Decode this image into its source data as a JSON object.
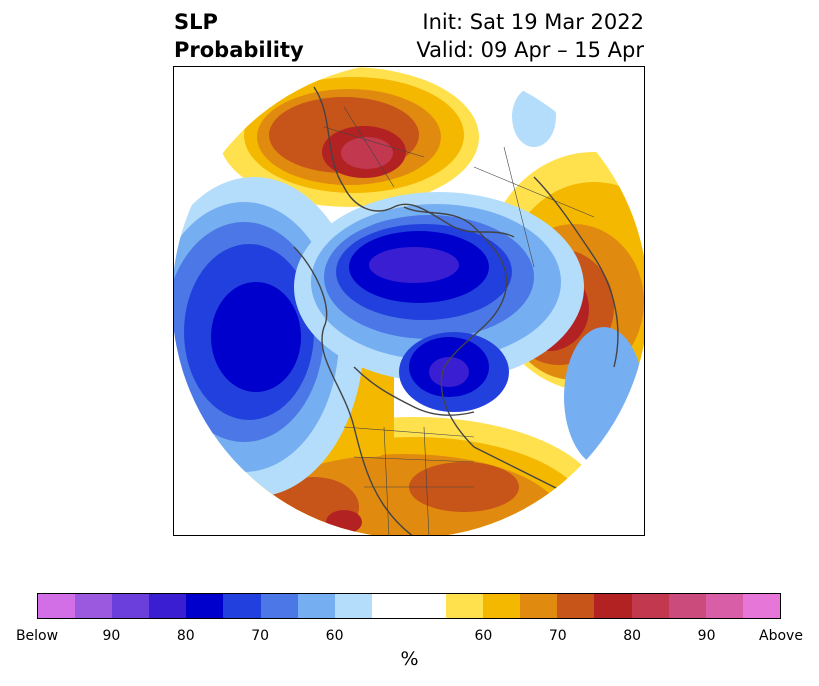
{
  "title": {
    "left_line1": "SLP",
    "left_line2": "Probability",
    "right_line1": "Init: Sat 19 Mar 2022",
    "right_line2": "Valid: 09 Apr – 15 Apr"
  },
  "colorbar": {
    "colors": [
      "#d36fe6",
      "#9b59e0",
      "#6a3fdc",
      "#3a1fd2",
      "#0000cc",
      "#2240dd",
      "#4b78e6",
      "#76aef2",
      "#b4ddfb",
      "#ffffff",
      "#ffffff",
      "#ffe14d",
      "#f5b800",
      "#e08a10",
      "#c75418",
      "#b22222",
      "#c2384f",
      "#cc4b7d",
      "#d95ea8",
      "#e676d8"
    ],
    "tick_labels": [
      "Below",
      "90",
      "80",
      "70",
      "60",
      "",
      "60",
      "70",
      "80",
      "90",
      "Above"
    ],
    "unit": "%"
  }
}
